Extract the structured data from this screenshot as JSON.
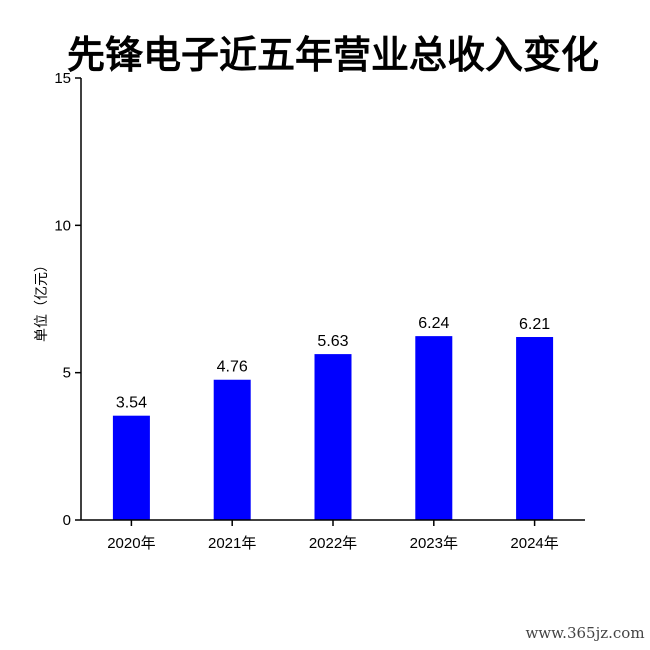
{
  "chart_data": {
    "type": "bar",
    "title": "先锋电子近五年营业总收入变化",
    "ylabel": "单位（亿元）",
    "xlabel": "",
    "categories": [
      "2020年",
      "2021年",
      "2022年",
      "2023年",
      "2024年"
    ],
    "values": [
      3.54,
      4.76,
      5.63,
      6.24,
      6.21
    ],
    "value_labels": [
      "3.54",
      "4.76",
      "5.63",
      "6.24",
      "6.21"
    ],
    "ylim": [
      0,
      15
    ],
    "yticks": [
      0,
      5,
      10,
      15
    ],
    "ytick_labels": [
      "0",
      "5",
      "10",
      "15"
    ],
    "bar_color": "#0000ff",
    "grid": false,
    "legend": "none"
  },
  "watermark": "www.365jz.com"
}
